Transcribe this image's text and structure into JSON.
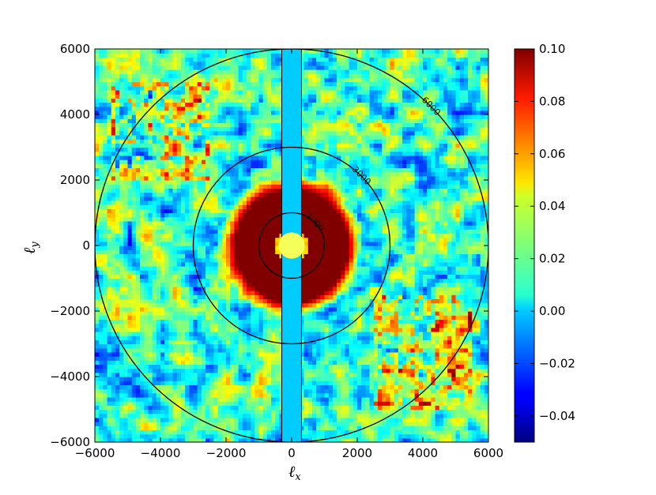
{
  "chart_data": {
    "type": "heatmap",
    "title": "",
    "xlabel": "ℓ",
    "xlabel_sub": "x",
    "ylabel": "ℓ",
    "ylabel_sub": "y",
    "xlim": [
      -6000,
      6000
    ],
    "ylim": [
      -6000,
      6000
    ],
    "x_ticks": [
      -6000,
      -4000,
      -2000,
      0,
      2000,
      4000,
      6000
    ],
    "x_tick_labels": [
      "−6000",
      "−4000",
      "−2000",
      "0",
      "2000",
      "4000",
      "6000"
    ],
    "y_ticks": [
      -6000,
      -4000,
      -2000,
      0,
      2000,
      4000,
      6000
    ],
    "y_tick_labels": [
      "−6000",
      "−4000",
      "−2000",
      "0",
      "2000",
      "4000",
      "6000"
    ],
    "colorbar": {
      "colormap": "jet",
      "min": -0.05,
      "max": 0.1,
      "ticks": [
        -0.04,
        -0.02,
        0.0,
        0.02,
        0.04,
        0.06,
        0.08,
        0.1
      ],
      "tick_labels": [
        "−0.04",
        "−0.02",
        "0.00",
        "0.02",
        "0.04",
        "0.06",
        "0.08",
        "0.10"
      ]
    },
    "contours": [
      {
        "radius": 1000,
        "label": "1000"
      },
      {
        "radius": 3000,
        "label": "3000"
      },
      {
        "radius": 6000,
        "label": "6000"
      }
    ],
    "masked_strip": {
      "x_min": -300,
      "x_max": 300,
      "color": "#00ccff"
    },
    "masked_center_radius": 400,
    "features": {
      "ring_inner_radius": 500,
      "ring_outer_radius": 2200,
      "ring_value": 0.1,
      "background_value": 0.015,
      "hot_spots_upper_left_value": 0.09,
      "hot_spots_lower_right_value": 0.09
    },
    "grid": false
  }
}
